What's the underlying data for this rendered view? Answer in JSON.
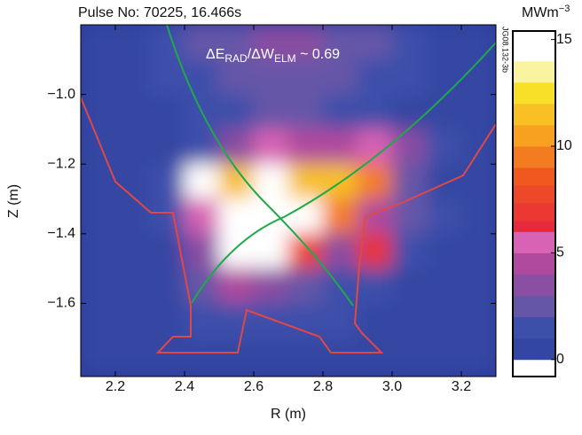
{
  "chart_data": {
    "type": "heatmap",
    "title": "Pulse No: 70225, 16.466s",
    "annotation": {
      "parts": [
        "ΔE",
        "RAD",
        "/ΔW",
        "ELM",
        " ~ 0.69"
      ]
    },
    "xlabel": "R (m)",
    "ylabel": "Z (m)",
    "colorbar_label": {
      "parts": [
        "MWm",
        "−3"
      ]
    },
    "side_text": "JG08.132-3b",
    "xlim": [
      2.1,
      3.3
    ],
    "ylim": [
      -1.81,
      -0.8
    ],
    "xticks": [
      2.2,
      2.4,
      2.6,
      2.8,
      {
        "value": 3.0,
        "label": "3.0"
      },
      3.2
    ],
    "yticks": [
      {
        "value": -1.0,
        "label": "−1.0"
      },
      {
        "value": -1.2,
        "label": "−1.2"
      },
      {
        "value": -1.4,
        "label": "−1.4"
      },
      {
        "value": -1.6,
        "label": "−1.6"
      }
    ],
    "x": [
      2.15,
      2.25,
      2.35,
      2.45,
      2.55,
      2.65,
      2.75,
      2.85,
      2.95,
      3.05,
      3.15,
      3.25
    ],
    "y": [
      -0.85,
      -0.95,
      -1.05,
      -1.15,
      -1.25,
      -1.35,
      -1.45,
      -1.55,
      -1.65,
      -1.75
    ],
    "z": [
      [
        1,
        1,
        2,
        3,
        3,
        4,
        4,
        3,
        3,
        2,
        1,
        1
      ],
      [
        1,
        1,
        2,
        2,
        3,
        3,
        3,
        3,
        2,
        2,
        1,
        1
      ],
      [
        1,
        1,
        1,
        2,
        2,
        3,
        3,
        2,
        2,
        1,
        1,
        1
      ],
      [
        1,
        1,
        1,
        2,
        4,
        6,
        5,
        5,
        6,
        4,
        2,
        1
      ],
      [
        1,
        1,
        2,
        15,
        12,
        15,
        12,
        12,
        10,
        3,
        1,
        1
      ],
      [
        1,
        1,
        2,
        6,
        15,
        15,
        15,
        10,
        5,
        3,
        2,
        1
      ],
      [
        1,
        1,
        1,
        4,
        15,
        15,
        8,
        4,
        7,
        2,
        1,
        1
      ],
      [
        1,
        1,
        1,
        3,
        5,
        4,
        3,
        2,
        2,
        1,
        1,
        1
      ],
      [
        1,
        1,
        1,
        2,
        2,
        2,
        2,
        2,
        1,
        1,
        1,
        1
      ],
      [
        1,
        1,
        1,
        1,
        1,
        1,
        1,
        1,
        1,
        1,
        1,
        1
      ]
    ],
    "clim": [
      -0.8,
      15.4
    ],
    "cticks": [
      0,
      5,
      10,
      15
    ],
    "colorscale": [
      [
        -0.8,
        "#ffffff"
      ],
      [
        0,
        "#2c3b9c"
      ],
      [
        2,
        "#3c50aa"
      ],
      [
        3,
        "#6656a8"
      ],
      [
        4,
        "#8a4ea2"
      ],
      [
        5,
        "#b04a9e"
      ],
      [
        6,
        "#d862b4"
      ],
      [
        6.5,
        "#e8283c"
      ],
      [
        9,
        "#f05820"
      ],
      [
        11,
        "#f8a020"
      ],
      [
        13,
        "#f8e028"
      ],
      [
        14,
        "#faf4a0"
      ],
      [
        15,
        "#ffffff"
      ]
    ]
  }
}
